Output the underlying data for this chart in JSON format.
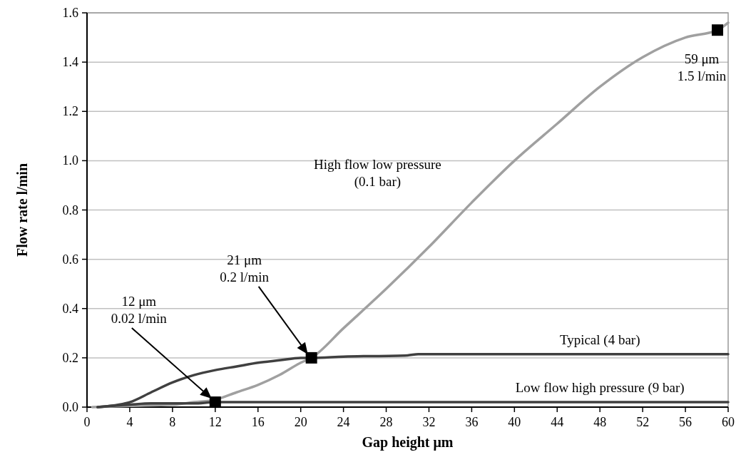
{
  "chart_data": {
    "type": "line",
    "xlabel": "Gap height μm",
    "ylabel": "Flow rate l/min",
    "xlim": [
      0,
      60
    ],
    "xticks": [
      0,
      4,
      8,
      12,
      16,
      20,
      24,
      28,
      32,
      36,
      40,
      44,
      48,
      52,
      56,
      60
    ],
    "ylim": [
      0,
      1.6
    ],
    "yticks": [
      {
        "value": 0,
        "label": "0.0"
      },
      {
        "value": 0.2,
        "label": "0.2"
      },
      {
        "value": 0.4,
        "label": "0.4"
      },
      {
        "value": 0.6,
        "label": "0.6"
      },
      {
        "value": 0.8,
        "label": "0.8"
      },
      {
        "value": 1.0,
        "label": "1.0"
      },
      {
        "value": 1.2,
        "label": "1.2"
      },
      {
        "value": 1.4,
        "label": "1.4"
      },
      {
        "value": 1.6,
        "label": "1.6"
      }
    ],
    "grid": "y",
    "marker": "none",
    "line_style": "solid",
    "series": [
      {
        "name": "High flow low pressure (0.1 bar)",
        "color": "#a0a0a0",
        "x": [
          0.5,
          4,
          8,
          10,
          12,
          14,
          16,
          18,
          20,
          21,
          24,
          28,
          32,
          36,
          40,
          44,
          48,
          52,
          56,
          59,
          60
        ],
        "values": [
          0,
          0.005,
          0.01,
          0.02,
          0.03,
          0.06,
          0.09,
          0.13,
          0.18,
          0.2,
          0.32,
          0.48,
          0.65,
          0.83,
          1.0,
          1.15,
          1.3,
          1.42,
          1.5,
          1.53,
          1.56
        ]
      },
      {
        "name": "Typical (4 bar)",
        "color": "#404040",
        "x": [
          1,
          3,
          4,
          6,
          8,
          10,
          12,
          14,
          16,
          18,
          20,
          21,
          24,
          30,
          31,
          60
        ],
        "values": [
          0,
          0.01,
          0.02,
          0.06,
          0.1,
          0.13,
          0.15,
          0.165,
          0.18,
          0.19,
          0.2,
          0.2,
          0.205,
          0.21,
          0.215,
          0.215
        ]
      },
      {
        "name": "Low flow high pressure (9 bar)",
        "color": "#404040",
        "x": [
          1,
          4,
          6,
          8,
          10,
          12,
          60
        ],
        "values": [
          0,
          0.01,
          0.015,
          0.015,
          0.015,
          0.02,
          0.02
        ]
      },
      {
        "type": "scatter",
        "marker": "square",
        "color": "#000000",
        "x": [
          12,
          21,
          59
        ],
        "values": [
          0.02,
          0.2,
          1.53
        ]
      }
    ],
    "annotations": [
      "12 μm\n0.02 l/min",
      "21 μm\n0.2 l/min",
      {
        "text": "59 μm\n1.5 l/min",
        "x": 59,
        "y": 1.5
      }
    ]
  }
}
